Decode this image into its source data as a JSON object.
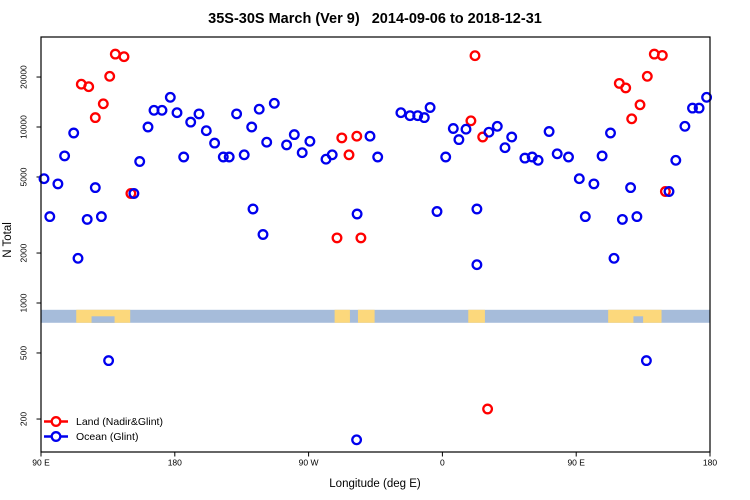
{
  "title": "35S-30S March (Ver 9)   2014-09-06 to 2018-12-31",
  "chart_data": {
    "type": "scatter",
    "title": "35S-30S March (Ver 9)   2014-09-06 to 2018-12-31",
    "xlabel": "Longitude (deg E)",
    "ylabel": "N Total",
    "y_scale": "log",
    "y_ticks": [
      {
        "value": 200,
        "label": "200"
      },
      {
        "value": 500,
        "label": "500"
      },
      {
        "value": 1000,
        "label": "1000"
      },
      {
        "value": 2000,
        "label": "2000"
      },
      {
        "value": 5000,
        "label": "5000"
      },
      {
        "value": 10000,
        "label": "10000"
      },
      {
        "value": 20000,
        "label": "20000"
      }
    ],
    "x_ticks": [
      {
        "lon": 90,
        "label": "90 E"
      },
      {
        "lon": 180,
        "label": "180"
      },
      {
        "lon": 270,
        "label": "90 W"
      },
      {
        "lon": 360,
        "label": "0"
      },
      {
        "lon": 450,
        "label": "90 E"
      },
      {
        "lon": 540,
        "label": "180"
      }
    ],
    "x_axis_span_deg": [
      90,
      540
    ],
    "legend_position": "bottom-left",
    "frame_color": "#000000",
    "series": [
      {
        "name": "Land (Nadir&Glint)",
        "color": "#ff0000",
        "points": [
          [
            140,
            27500
          ],
          [
            145.8,
            26500
          ],
          [
            136.2,
            20200
          ],
          [
            117.1,
            18100
          ],
          [
            122.1,
            17500
          ],
          [
            131.9,
            13800
          ],
          [
            126.5,
            11400
          ],
          [
            150.5,
            4100
          ],
          [
            292.3,
            8600
          ],
          [
            302.4,
            8800
          ],
          [
            297.2,
            6800
          ],
          [
            289.1,
            2400
          ],
          [
            305.2,
            2400
          ],
          [
            381.9,
            26900
          ],
          [
            379.2,
            10900
          ],
          [
            387.1,
            8700
          ],
          [
            390.4,
            230
          ],
          [
            502.5,
            27500
          ],
          [
            507.9,
            27000
          ],
          [
            497.8,
            20200
          ],
          [
            479,
            18300
          ],
          [
            483.3,
            17200
          ],
          [
            492.9,
            13600
          ],
          [
            487.3,
            11200
          ],
          [
            510,
            4200
          ]
        ]
      },
      {
        "name": "Ocean (Glint)",
        "color": "#0000ee",
        "points": [
          [
            92,
            4900
          ],
          [
            101.4,
            4600
          ],
          [
            126.5,
            4400
          ],
          [
            152.5,
            4100
          ],
          [
            95.9,
            3100
          ],
          [
            121.1,
            3000
          ],
          [
            130.6,
            3100
          ],
          [
            114.9,
            1860
          ],
          [
            105.9,
            6700
          ],
          [
            112,
            9200
          ],
          [
            135.5,
            450
          ],
          [
            156.4,
            6200
          ],
          [
            162,
            10000
          ],
          [
            166,
            12600
          ],
          [
            171.4,
            12600
          ],
          [
            177,
            15100
          ],
          [
            181.5,
            12200
          ],
          [
            186,
            6600
          ],
          [
            190.7,
            10700
          ],
          [
            196.3,
            12000
          ],
          [
            201.2,
            9500
          ],
          [
            206.8,
            8000
          ],
          [
            212.6,
            6600
          ],
          [
            216.6,
            6600
          ],
          [
            221.6,
            12000
          ],
          [
            226.7,
            6800
          ],
          [
            231.7,
            10000
          ],
          [
            236.8,
            12800
          ],
          [
            241.8,
            8100
          ],
          [
            246.9,
            13900
          ],
          [
            255.2,
            7800
          ],
          [
            260.4,
            9000
          ],
          [
            265.7,
            7000
          ],
          [
            270.9,
            8200
          ],
          [
            281.7,
            6400
          ],
          [
            285.9,
            6800
          ],
          [
            232.6,
            3400
          ],
          [
            239.3,
            2500
          ],
          [
            302.6,
            3200
          ],
          [
            311.3,
            8800
          ],
          [
            316.5,
            6600
          ],
          [
            302.3,
            150
          ],
          [
            332.1,
            12200
          ],
          [
            338.2,
            11700
          ],
          [
            343.4,
            11700
          ],
          [
            347.8,
            11400
          ],
          [
            351.7,
            13100
          ],
          [
            356.4,
            3300
          ],
          [
            362.2,
            6600
          ],
          [
            367.3,
            9800
          ],
          [
            371.1,
            8400
          ],
          [
            375.9,
            9700
          ],
          [
            383.2,
            3400
          ],
          [
            383.2,
            1700
          ],
          [
            391.3,
            9300
          ],
          [
            396.9,
            10100
          ],
          [
            402.1,
            7500
          ],
          [
            406.6,
            8700
          ],
          [
            415.5,
            6500
          ],
          [
            420.4,
            6600
          ],
          [
            424.4,
            6300
          ],
          [
            431.8,
            9400
          ],
          [
            437.2,
            6900
          ],
          [
            444.8,
            6600
          ],
          [
            452.1,
            4900
          ],
          [
            456.1,
            3100
          ],
          [
            461.9,
            4600
          ],
          [
            467.4,
            6700
          ],
          [
            473.1,
            9200
          ],
          [
            475.4,
            1860
          ],
          [
            481.1,
            3000
          ],
          [
            486.6,
            4400
          ],
          [
            490.8,
            3100
          ],
          [
            497.2,
            450
          ],
          [
            512.4,
            4200
          ],
          [
            517,
            6300
          ],
          [
            523.1,
            10100
          ],
          [
            528.2,
            13000
          ],
          [
            532.7,
            13000
          ],
          [
            537.7,
            15100
          ]
        ]
      }
    ],
    "map_strip": {
      "ocean_color": "#a6bcda",
      "land_color": "#fcd87c",
      "value_range": [
        760,
        910
      ],
      "land_patches": [
        {
          "lon": [
            113.7,
            150
          ],
          "notches": [
            [
              124,
              139.5
            ]
          ]
        },
        {
          "lon": [
            287.5,
            297.8
          ],
          "notches": []
        },
        {
          "lon": [
            303.2,
            314.4
          ],
          "notches": []
        },
        {
          "lon": [
            377.4,
            388.6
          ],
          "notches": []
        },
        {
          "lon": [
            471.5,
            507.4
          ],
          "notches": [
            [
              488.5,
              495
            ]
          ]
        }
      ]
    }
  }
}
